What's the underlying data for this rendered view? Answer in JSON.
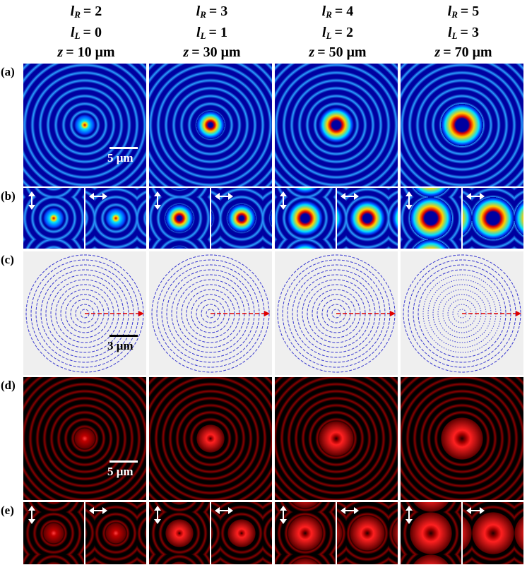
{
  "columns": [
    {
      "lr": [
        "l",
        "R",
        "= 2"
      ],
      "ll": [
        "l",
        "L",
        "= 0"
      ],
      "z": [
        "z",
        "= 10 μm"
      ]
    },
    {
      "lr": [
        "l",
        "R",
        "= 3"
      ],
      "ll": [
        "l",
        "L",
        "= 1"
      ],
      "z": [
        "z",
        "= 30 μm"
      ]
    },
    {
      "lr": [
        "l",
        "R",
        "= 4"
      ],
      "ll": [
        "l",
        "L",
        "= 2"
      ],
      "z": [
        "z",
        "= 50 μm"
      ]
    },
    {
      "lr": [
        "l",
        "R",
        "= 5"
      ],
      "ll": [
        "l",
        "L",
        "= 3"
      ],
      "z": [
        "z",
        "= 70 μm"
      ]
    }
  ],
  "row_labels": [
    "(a)",
    "(b)",
    "(c)",
    "(d)",
    "(e)"
  ],
  "scale_bars": {
    "a": "5 μm",
    "c": "3 μm",
    "d": "5 μm"
  }
}
